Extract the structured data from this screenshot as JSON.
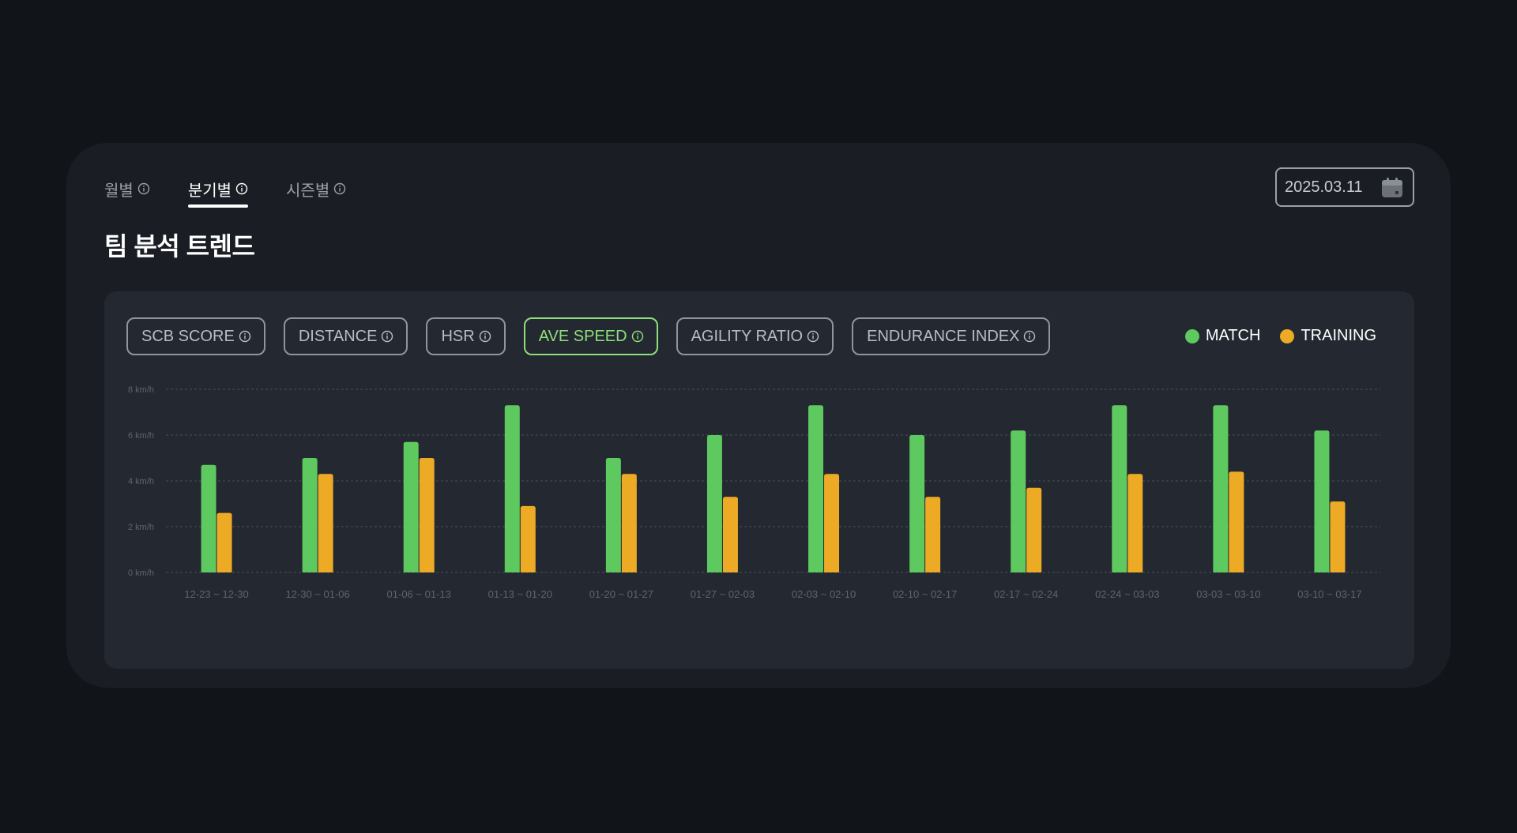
{
  "tabs": [
    {
      "label": "월별",
      "active": false
    },
    {
      "label": "분기별",
      "active": true
    },
    {
      "label": "시즌별",
      "active": false
    }
  ],
  "date_value": "2025.03.11",
  "title": "팀 분석 트렌드",
  "metric_chips": [
    {
      "label": "SCB SCORE",
      "active": false
    },
    {
      "label": "DISTANCE",
      "active": false
    },
    {
      "label": "HSR",
      "active": false
    },
    {
      "label": "AVE SPEED",
      "active": true
    },
    {
      "label": "AGILITY RATIO",
      "active": false
    },
    {
      "label": "ENDURANCE INDEX",
      "active": false
    }
  ],
  "legend": [
    {
      "label": "MATCH",
      "color": "#5ec95f"
    },
    {
      "label": "TRAINING",
      "color": "#ecaa25"
    }
  ],
  "colors": {
    "match": "#5ec95f",
    "training": "#ecaa25",
    "active_chip": "#8fe07d",
    "background": "#111418",
    "panel": "#1a1e24",
    "card": "#232831"
  },
  "icons": {
    "info": "info-icon",
    "calendar": "calendar-icon"
  },
  "chart_data": {
    "type": "bar",
    "categories": [
      "12-23 ~ 12-30",
      "12-30 ~ 01-06",
      "01-06 ~ 01-13",
      "01-13 ~ 01-20",
      "01-20 ~ 01-27",
      "01-27 ~ 02-03",
      "02-03 ~ 02-10",
      "02-10 ~ 02-17",
      "02-17 ~ 02-24",
      "02-24 ~ 03-03",
      "03-03 ~ 03-10",
      "03-10 ~ 03-17"
    ],
    "series": [
      {
        "name": "MATCH",
        "color": "#5ec95f",
        "values": [
          4.7,
          5.0,
          5.7,
          7.3,
          5.0,
          6.0,
          7.3,
          6.0,
          6.2,
          7.3,
          7.3,
          6.2
        ]
      },
      {
        "name": "TRAINING",
        "color": "#ecaa25",
        "values": [
          2.6,
          4.3,
          5.0,
          2.9,
          4.3,
          3.3,
          4.3,
          3.3,
          3.7,
          4.3,
          4.4,
          3.1
        ]
      }
    ],
    "yticks": [
      "0 km/h",
      "2 km/h",
      "4 km/h",
      "6 km/h",
      "8 km/h"
    ],
    "ylim": [
      0,
      8
    ],
    "grid": true,
    "legend_position": "top-right"
  }
}
